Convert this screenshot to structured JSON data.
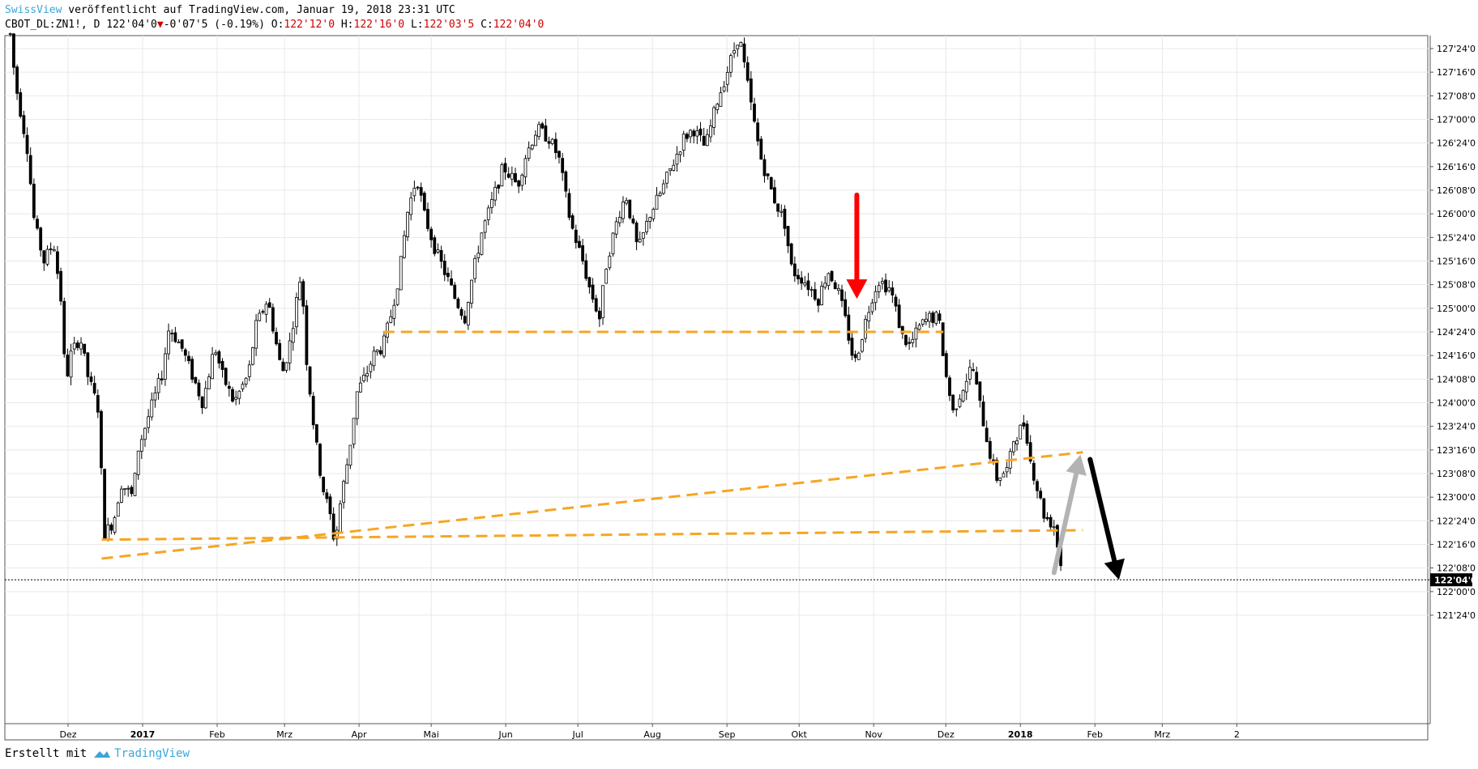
{
  "header": {
    "brand": "SwissView",
    "published": " veröffentlicht auf TradingView.com, Januar 19, 2018 23:31 UTC",
    "symbol": "CBOT_DL:ZN1!, D",
    "last": "122'04'0",
    "change_arrow": "▼",
    "change": "-0'07'5 (-0.19%)",
    "o_label": "O:",
    "o_value": "122'12'0",
    "h_label": "H:",
    "h_value": "122'16'0",
    "l_label": "L:",
    "l_value": "122'03'5",
    "c_label": "C:",
    "c_value": "122'04'0"
  },
  "footer": {
    "created_with": "Erstellt mit",
    "brand": "TradingView"
  },
  "colors": {
    "candle": "#000000",
    "grid": "#e8e8e8",
    "support": "#f5a623",
    "down_arrow": "#ff0000",
    "up_arrow": "#b3b3b3",
    "projection_arrow": "#000000",
    "brand": "#3aa6d8"
  },
  "chart_data": {
    "type": "candlestick",
    "ylim": [
      121.6,
      127.9
    ],
    "y_ticks": [
      {
        "v": 127.75,
        "label": "127'24'0"
      },
      {
        "v": 127.5,
        "label": "127'16'0"
      },
      {
        "v": 127.25,
        "label": "127'08'0"
      },
      {
        "v": 127.0,
        "label": "127'00'0"
      },
      {
        "v": 126.75,
        "label": "126'24'0"
      },
      {
        "v": 126.5,
        "label": "126'16'0"
      },
      {
        "v": 126.25,
        "label": "126'08'0"
      },
      {
        "v": 126.0,
        "label": "126'00'0"
      },
      {
        "v": 125.75,
        "label": "125'24'0"
      },
      {
        "v": 125.5,
        "label": "125'16'0"
      },
      {
        "v": 125.25,
        "label": "125'08'0"
      },
      {
        "v": 125.0,
        "label": "125'00'0"
      },
      {
        "v": 124.75,
        "label": "124'24'0"
      },
      {
        "v": 124.5,
        "label": "124'16'0"
      },
      {
        "v": 124.25,
        "label": "124'08'0"
      },
      {
        "v": 124.0,
        "label": "124'00'0"
      },
      {
        "v": 123.75,
        "label": "123'24'0"
      },
      {
        "v": 123.5,
        "label": "123'16'0"
      },
      {
        "v": 123.25,
        "label": "123'08'0"
      },
      {
        "v": 123.0,
        "label": "123'00'0"
      },
      {
        "v": 122.75,
        "label": "122'24'0"
      },
      {
        "v": 122.5,
        "label": "122'16'0"
      },
      {
        "v": 122.25,
        "label": "122'08'0"
      },
      {
        "v": 122.0,
        "label": "122'00'0"
      },
      {
        "v": 121.75,
        "label": "121'24'0"
      }
    ],
    "last_price": {
      "v": 122.125,
      "label": "122'04'0"
    },
    "x_labels": [
      {
        "t": "2016-12-01",
        "label": "Dez",
        "bold": false
      },
      {
        "t": "2017-01-01",
        "label": "2017",
        "bold": true
      },
      {
        "t": "2017-02-01",
        "label": "Feb",
        "bold": false
      },
      {
        "t": "2017-03-01",
        "label": "Mrz",
        "bold": false
      },
      {
        "t": "2017-04-01",
        "label": "Apr",
        "bold": false
      },
      {
        "t": "2017-05-01",
        "label": "Mai",
        "bold": false
      },
      {
        "t": "2017-06-01",
        "label": "Jun",
        "bold": false
      },
      {
        "t": "2017-07-01",
        "label": "Jul",
        "bold": false
      },
      {
        "t": "2017-08-01",
        "label": "Aug",
        "bold": false
      },
      {
        "t": "2017-09-01",
        "label": "Sep",
        "bold": false
      },
      {
        "t": "2017-10-01",
        "label": "Okt",
        "bold": false
      },
      {
        "t": "2017-11-01",
        "label": "Nov",
        "bold": false
      },
      {
        "t": "2017-12-01",
        "label": "Dez",
        "bold": false
      },
      {
        "t": "2018-01-01",
        "label": "2018",
        "bold": true
      },
      {
        "t": "2018-02-01",
        "label": "Feb",
        "bold": false
      },
      {
        "t": "2018-03-01",
        "label": "Mrz",
        "bold": false
      },
      {
        "t": "2018-04-01",
        "label": "2",
        "bold": false
      }
    ],
    "trend_points": [
      [
        "2016-11-07",
        127.9
      ],
      [
        "2016-11-09",
        127.4
      ],
      [
        "2016-11-14",
        126.7
      ],
      [
        "2016-11-17",
        125.9
      ],
      [
        "2016-11-21",
        125.5
      ],
      [
        "2016-11-25",
        125.7
      ],
      [
        "2016-11-28",
        125.1
      ],
      [
        "2016-11-30",
        124.2
      ],
      [
        "2016-12-02",
        124.5
      ],
      [
        "2016-12-06",
        124.7
      ],
      [
        "2016-12-09",
        124.3
      ],
      [
        "2016-12-14",
        123.9
      ],
      [
        "2016-12-15",
        123.1
      ],
      [
        "2016-12-16",
        122.6
      ],
      [
        "2016-12-20",
        122.75
      ],
      [
        "2016-12-23",
        123.15
      ],
      [
        "2016-12-28",
        123.0
      ],
      [
        "2016-12-30",
        123.5
      ],
      [
        "2017-01-04",
        123.9
      ],
      [
        "2017-01-09",
        124.3
      ],
      [
        "2017-01-12",
        124.8
      ],
      [
        "2017-01-17",
        124.6
      ],
      [
        "2017-01-20",
        124.4
      ],
      [
        "2017-01-26",
        124.0
      ],
      [
        "2017-01-31",
        124.6
      ],
      [
        "2017-02-03",
        124.3
      ],
      [
        "2017-02-08",
        124.0
      ],
      [
        "2017-02-14",
        124.3
      ],
      [
        "2017-02-17",
        124.8
      ],
      [
        "2017-02-22",
        125.1
      ],
      [
        "2017-02-28",
        124.3
      ],
      [
        "2017-03-03",
        124.6
      ],
      [
        "2017-03-08",
        125.4
      ],
      [
        "2017-03-10",
        124.5
      ],
      [
        "2017-03-13",
        123.8
      ],
      [
        "2017-03-15",
        123.4
      ],
      [
        "2017-03-17",
        123.1
      ],
      [
        "2017-03-20",
        122.8
      ],
      [
        "2017-03-22",
        122.5
      ],
      [
        "2017-03-24",
        122.9
      ],
      [
        "2017-03-28",
        123.5
      ],
      [
        "2017-03-31",
        124.1
      ],
      [
        "2017-04-04",
        124.3
      ],
      [
        "2017-04-07",
        124.5
      ],
      [
        "2017-04-11",
        124.6
      ],
      [
        "2017-04-14",
        124.9
      ],
      [
        "2017-04-18",
        125.4
      ],
      [
        "2017-04-21",
        126.0
      ],
      [
        "2017-04-25",
        126.4
      ],
      [
        "2017-04-28",
        126.0
      ],
      [
        "2017-05-03",
        125.6
      ],
      [
        "2017-05-08",
        125.3
      ],
      [
        "2017-05-11",
        125.1
      ],
      [
        "2017-05-15",
        124.9
      ],
      [
        "2017-05-17",
        125.2
      ],
      [
        "2017-05-22",
        125.8
      ],
      [
        "2017-05-26",
        126.1
      ],
      [
        "2017-05-31",
        126.5
      ],
      [
        "2017-06-06",
        126.3
      ],
      [
        "2017-06-09",
        126.6
      ],
      [
        "2017-06-14",
        126.9
      ],
      [
        "2017-06-19",
        126.8
      ],
      [
        "2017-06-23",
        126.6
      ],
      [
        "2017-06-28",
        125.9
      ],
      [
        "2017-07-03",
        125.5
      ],
      [
        "2017-07-06",
        125.2
      ],
      [
        "2017-07-10",
        124.9
      ],
      [
        "2017-07-13",
        125.5
      ],
      [
        "2017-07-18",
        126.0
      ],
      [
        "2017-07-21",
        126.2
      ],
      [
        "2017-07-26",
        125.6
      ],
      [
        "2017-07-31",
        126.0
      ],
      [
        "2017-08-04",
        126.2
      ],
      [
        "2017-08-09",
        126.5
      ],
      [
        "2017-08-14",
        126.8
      ],
      [
        "2017-08-18",
        126.9
      ],
      [
        "2017-08-23",
        126.7
      ],
      [
        "2017-08-28",
        127.2
      ],
      [
        "2017-09-01",
        127.5
      ],
      [
        "2017-09-06",
        127.9
      ],
      [
        "2017-09-08",
        127.6
      ],
      [
        "2017-09-12",
        127.0
      ],
      [
        "2017-09-15",
        126.6
      ],
      [
        "2017-09-20",
        126.2
      ],
      [
        "2017-09-25",
        125.9
      ],
      [
        "2017-09-28",
        125.4
      ],
      [
        "2017-10-03",
        125.3
      ],
      [
        "2017-10-09",
        125.1
      ],
      [
        "2017-10-13",
        125.4
      ],
      [
        "2017-10-17",
        125.2
      ],
      [
        "2017-10-20",
        124.9
      ],
      [
        "2017-10-24",
        124.4
      ],
      [
        "2017-10-27",
        124.7
      ],
      [
        "2017-10-31",
        125.1
      ],
      [
        "2017-11-03",
        125.3
      ],
      [
        "2017-11-08",
        125.2
      ],
      [
        "2017-11-13",
        124.7
      ],
      [
        "2017-11-16",
        124.6
      ],
      [
        "2017-11-20",
        124.8
      ],
      [
        "2017-11-24",
        124.9
      ],
      [
        "2017-11-28",
        124.9
      ],
      [
        "2017-12-01",
        124.3
      ],
      [
        "2017-12-04",
        123.9
      ],
      [
        "2017-12-07",
        124.1
      ],
      [
        "2017-12-12",
        124.4
      ],
      [
        "2017-12-15",
        124.0
      ],
      [
        "2017-12-19",
        123.5
      ],
      [
        "2017-12-22",
        123.2
      ],
      [
        "2017-12-27",
        123.3
      ],
      [
        "2017-12-29",
        123.6
      ],
      [
        "2018-01-03",
        123.8
      ],
      [
        "2018-01-05",
        123.4
      ],
      [
        "2018-01-09",
        123.0
      ],
      [
        "2018-01-11",
        122.8
      ],
      [
        "2018-01-15",
        122.7
      ],
      [
        "2018-01-17",
        122.4
      ],
      [
        "2018-01-19",
        122.125
      ]
    ],
    "support_lines": [
      {
        "name": "lower-support",
        "from": [
          "2016-12-15",
          122.55
        ],
        "to": [
          "2018-01-27",
          122.65
        ]
      },
      {
        "name": "rising-trendline",
        "from": [
          "2016-12-15",
          122.35
        ],
        "to": [
          "2018-01-27",
          123.475
        ]
      },
      {
        "name": "middle-support",
        "from": [
          "2017-04-11",
          124.75
        ],
        "to": [
          "2017-11-30",
          124.75
        ]
      }
    ],
    "annotations": [
      {
        "name": "red-down-arrow",
        "type": "down-arrow",
        "color": "red",
        "from": [
          "2017-10-25",
          126.2
        ],
        "to": [
          "2017-10-25",
          125.1
        ]
      },
      {
        "name": "gray-up-arrow",
        "type": "up-arrow",
        "color": "gray",
        "from": [
          "2018-01-15",
          122.2
        ],
        "to": [
          "2018-01-26",
          123.45
        ]
      },
      {
        "name": "black-projection-arrow",
        "type": "down-arrow",
        "color": "black",
        "from": [
          "2018-01-30",
          123.4
        ],
        "to": [
          "2018-02-11",
          122.125
        ]
      }
    ]
  }
}
